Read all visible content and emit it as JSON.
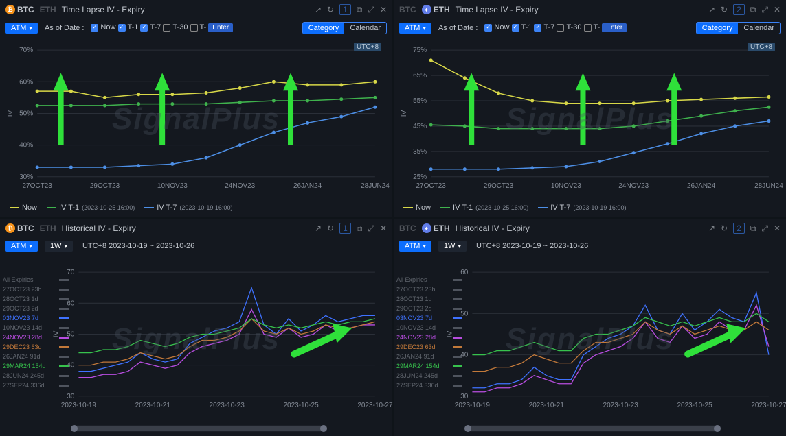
{
  "watermark": "SignalPlus",
  "timezone": "UTC+8",
  "panels": {
    "tl_btc": {
      "coin_active": "BTC",
      "coin_inactive": "ETH",
      "title": "Time Lapse IV - Expiry",
      "badge": "1",
      "atm": "ATM",
      "asOf": "As of Date :",
      "date_opts": [
        {
          "label": "Now",
          "checked": true
        },
        {
          "label": "T-1",
          "checked": true
        },
        {
          "label": "T-7",
          "checked": true
        },
        {
          "label": "T-30",
          "checked": false
        },
        {
          "label": "T-",
          "checked": false,
          "input": "Enter"
        }
      ],
      "tabs": [
        "Category",
        "Calendar"
      ],
      "ylabel": "IV",
      "ylim": [
        30,
        70
      ],
      "ytick_step": 10,
      "xcats": [
        "27OCT23",
        "29OCT23",
        "10NOV23",
        "24NOV23",
        "26JAN24",
        "28JUN24"
      ],
      "series": [
        {
          "name": "Now",
          "color": "#d8d848",
          "values": [
            57,
            57,
            55,
            56,
            56,
            56.5,
            58,
            60,
            59,
            59,
            60
          ]
        },
        {
          "name": "IV T-1",
          "suffix": "(2023-10-25 16:00)",
          "color": "#3fb24d",
          "values": [
            52.5,
            52.5,
            52.5,
            53,
            53,
            53,
            53.5,
            54,
            54,
            54.5,
            55
          ]
        },
        {
          "name": "IV T-7",
          "suffix": "(2023-10-19 16:00)",
          "color": "#4d8fe6",
          "values": [
            33,
            33,
            33,
            33.5,
            34,
            36,
            40,
            44,
            47,
            49,
            52
          ]
        }
      ],
      "grid_color": "#2a2f38",
      "bg": "#14181f",
      "label_size": 10
    },
    "tl_eth": {
      "coin_active": "ETH",
      "coin_inactive": "BTC",
      "title": "Time Lapse IV - Expiry",
      "badge": "2",
      "atm": "ATM",
      "asOf": "As of Date :",
      "date_opts": [
        {
          "label": "Now",
          "checked": true
        },
        {
          "label": "T-1",
          "checked": true
        },
        {
          "label": "T-7",
          "checked": true
        },
        {
          "label": "T-30",
          "checked": false
        },
        {
          "label": "T-",
          "checked": false,
          "input": "Enter"
        }
      ],
      "tabs": [
        "Category",
        "Calendar"
      ],
      "ylabel": "IV",
      "ylim": [
        25,
        75
      ],
      "ytick_step": 10,
      "xcats": [
        "27OCT23",
        "29OCT23",
        "10NOV23",
        "24NOV23",
        "26JAN24",
        "28JUN24"
      ],
      "series": [
        {
          "name": "Now",
          "color": "#d8d848",
          "values": [
            71,
            64,
            58,
            55,
            54,
            54,
            54,
            55,
            55.5,
            56,
            56.5
          ]
        },
        {
          "name": "IV T-1",
          "suffix": "(2023-10-25 16:00)",
          "color": "#3fb24d",
          "values": [
            45.5,
            45,
            44,
            44,
            44,
            44,
            45,
            47,
            49,
            51,
            52.5
          ]
        },
        {
          "name": "IV T-7",
          "suffix": "(2023-10-19 16:00)",
          "color": "#4d8fe6",
          "values": [
            28,
            28,
            28,
            28.5,
            29,
            31,
            34.5,
            38,
            42,
            45,
            47
          ]
        }
      ],
      "grid_color": "#2a2f38",
      "bg": "#14181f",
      "label_size": 10
    },
    "hist_btc": {
      "coin_active": "BTC",
      "coin_inactive": "ETH",
      "title": "Historical IV - Expiry",
      "badge": "1",
      "atm": "ATM",
      "period": "1W",
      "range": "UTC+8 2023-10-19 ~ 2023-10-26",
      "ylabel": "IV",
      "ylim": [
        30,
        70
      ],
      "ytick_step": 10,
      "xcats": [
        "2023-10-19",
        "2023-10-21",
        "2023-10-23",
        "2023-10-25",
        "2023-10-27"
      ],
      "expiries": [
        {
          "label": "All Expiries",
          "on": false,
          "color": "#808692"
        },
        {
          "label": "27OCT23 23h",
          "on": false,
          "color": "#808692"
        },
        {
          "label": "28OCT23 1d",
          "on": false,
          "color": "#808692"
        },
        {
          "label": "29OCT23 2d",
          "on": false,
          "color": "#808692"
        },
        {
          "label": "03NOV23 7d",
          "on": true,
          "color": "#3f72ff"
        },
        {
          "label": "10NOV23 14d",
          "on": false,
          "color": "#808692"
        },
        {
          "label": "24NOV23 28d",
          "on": true,
          "color": "#b84de0"
        },
        {
          "label": "29DEC23 63d",
          "on": true,
          "color": "#c2793a"
        },
        {
          "label": "26JAN24 91d",
          "on": false,
          "color": "#808692"
        },
        {
          "label": "29MAR24 154d",
          "on": true,
          "color": "#37c24d"
        },
        {
          "label": "28JUN24 245d",
          "on": false,
          "color": "#808692"
        },
        {
          "label": "27SEP24 336d",
          "on": false,
          "color": "#808692"
        }
      ],
      "series": [
        {
          "color": "#3f72ff",
          "values": [
            38,
            38,
            39,
            40,
            41,
            44,
            42,
            41,
            42,
            47,
            49,
            51,
            52,
            54,
            65,
            53,
            50,
            55,
            51,
            53,
            56,
            54,
            55,
            56,
            56
          ]
        },
        {
          "color": "#b84de0",
          "values": [
            36,
            36,
            37,
            37,
            38,
            41,
            40,
            39,
            40,
            44,
            46,
            47,
            48,
            50,
            58,
            50,
            49,
            52,
            49,
            50,
            53,
            51,
            52,
            53,
            53
          ]
        },
        {
          "color": "#c2793a",
          "values": [
            40,
            40,
            41,
            41,
            42,
            44,
            43,
            42,
            43,
            46,
            48,
            48,
            49,
            51,
            55,
            51,
            50,
            52,
            50,
            51,
            53,
            52,
            52,
            53,
            54
          ]
        },
        {
          "color": "#37c24d",
          "values": [
            44,
            44,
            45,
            45,
            46,
            48,
            47,
            46,
            47,
            49,
            50,
            50,
            51,
            52,
            55,
            53,
            52,
            53,
            52,
            53,
            54,
            53,
            54,
            54,
            55
          ]
        }
      ]
    },
    "hist_eth": {
      "coin_active": "ETH",
      "coin_inactive": "BTC",
      "title": "Historical IV - Expiry",
      "badge": "2",
      "atm": "ATM",
      "period": "1W",
      "range": "UTC+8 2023-10-19 ~ 2023-10-26",
      "ylabel": "IV",
      "ylim": [
        30,
        60
      ],
      "ytick_step": 10,
      "xcats": [
        "2023-10-19",
        "2023-10-21",
        "2023-10-23",
        "2023-10-25",
        "2023-10-27"
      ],
      "expiries": [
        {
          "label": "All Expiries",
          "on": false,
          "color": "#808692"
        },
        {
          "label": "27OCT23 23h",
          "on": false,
          "color": "#808692"
        },
        {
          "label": "28OCT23 1d",
          "on": false,
          "color": "#808692"
        },
        {
          "label": "29OCT23 2d",
          "on": false,
          "color": "#808692"
        },
        {
          "label": "03NOV23 7d",
          "on": true,
          "color": "#3f72ff"
        },
        {
          "label": "10NOV23 14d",
          "on": false,
          "color": "#808692"
        },
        {
          "label": "24NOV23 28d",
          "on": true,
          "color": "#b84de0"
        },
        {
          "label": "29DEC23 63d",
          "on": true,
          "color": "#c2793a"
        },
        {
          "label": "26JAN24 91d",
          "on": false,
          "color": "#808692"
        },
        {
          "label": "29MAR24 154d",
          "on": true,
          "color": "#37c24d"
        },
        {
          "label": "28JUN24 245d",
          "on": false,
          "color": "#808692"
        },
        {
          "label": "27SEP24 336d",
          "on": false,
          "color": "#808692"
        }
      ],
      "series": [
        {
          "color": "#3f72ff",
          "values": [
            32,
            32,
            33,
            33,
            34,
            37,
            35,
            34,
            34,
            40,
            42,
            44,
            45,
            47,
            52,
            46,
            45,
            50,
            46,
            48,
            51,
            49,
            48,
            55,
            40
          ]
        },
        {
          "color": "#b84de0",
          "values": [
            31,
            31,
            32,
            32,
            33,
            35,
            34,
            33,
            33,
            38,
            40,
            41,
            42,
            44,
            48,
            44,
            43,
            47,
            44,
            45,
            48,
            46,
            46,
            52,
            42
          ]
        },
        {
          "color": "#c2793a",
          "values": [
            36,
            36,
            37,
            37,
            38,
            40,
            39,
            38,
            38,
            41,
            43,
            43,
            44,
            45,
            48,
            46,
            45,
            47,
            45,
            46,
            47,
            46,
            46,
            48,
            46
          ]
        },
        {
          "color": "#37c24d",
          "values": [
            40,
            40,
            41,
            41,
            42,
            43,
            42,
            41,
            41,
            44,
            45,
            45,
            46,
            47,
            49,
            48,
            47,
            48,
            47,
            48,
            49,
            48,
            48,
            50,
            48
          ]
        }
      ]
    }
  }
}
